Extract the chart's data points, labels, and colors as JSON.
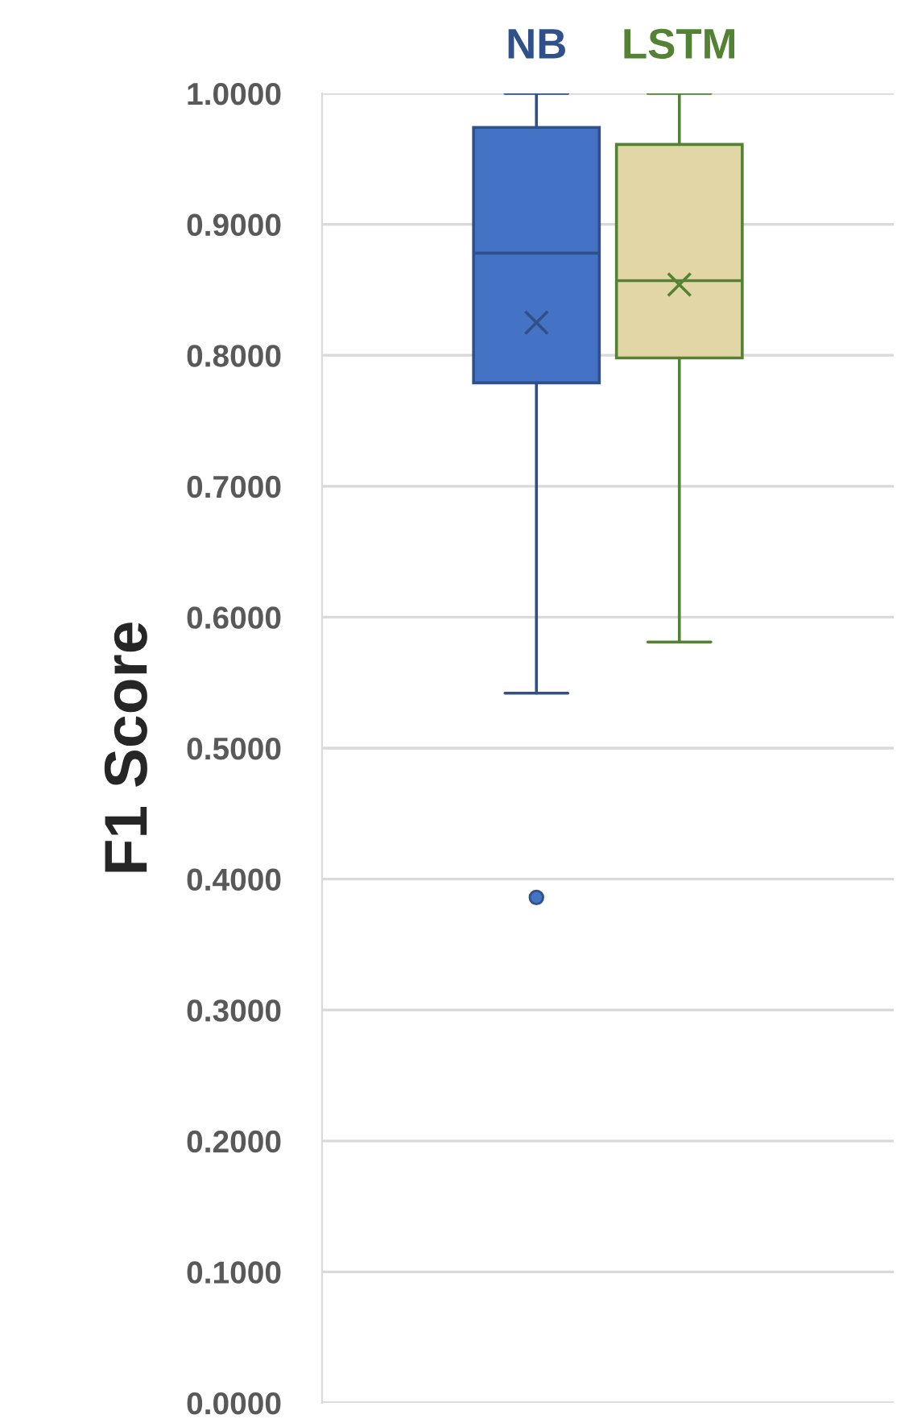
{
  "chart_data": {
    "type": "box",
    "ylabel": "F1 Score",
    "categories": [
      null
    ],
    "series": [
      {
        "name": "NB",
        "color": "#4472c4",
        "boxes": [
          {
            "low": 0.542,
            "q1": 0.779,
            "median": 0.878,
            "q3": 0.974,
            "high": 1.0,
            "mean": 0.825,
            "outliers": [
              0.386
            ]
          }
        ]
      },
      {
        "name": "LSTM",
        "color": "#e2d6a6",
        "boxes": [
          {
            "low": 0.581,
            "q1": 0.798,
            "median": 0.857,
            "q3": 0.961,
            "high": 1.0,
            "mean": 0.854
          }
        ]
      }
    ],
    "ylim": [
      0,
      1
    ],
    "yticks": [
      {
        "value": 0,
        "label": "0.0000"
      },
      {
        "value": 0.1,
        "label": "0.1000"
      },
      {
        "value": 0.2,
        "label": "0.2000"
      },
      {
        "value": 0.3,
        "label": "0.3000"
      },
      {
        "value": 0.4,
        "label": "0.4000"
      },
      {
        "value": 0.5,
        "label": "0.5000"
      },
      {
        "value": 0.6,
        "label": "0.6000"
      },
      {
        "value": 0.7,
        "label": "0.7000"
      },
      {
        "value": 0.8,
        "label": "0.8000"
      },
      {
        "value": 0.9,
        "label": "0.9000"
      },
      {
        "value": 1.0,
        "label": "1.0000"
      }
    ],
    "grid": "y",
    "legend": "top",
    "tick_labels": "y"
  }
}
